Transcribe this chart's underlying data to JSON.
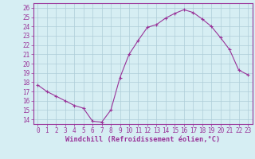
{
  "x": [
    0,
    1,
    2,
    3,
    4,
    5,
    6,
    7,
    8,
    9,
    10,
    11,
    12,
    13,
    14,
    15,
    16,
    17,
    18,
    19,
    20,
    21,
    22,
    23
  ],
  "y": [
    17.7,
    17.0,
    16.5,
    16.0,
    15.5,
    15.2,
    13.8,
    13.7,
    15.0,
    18.5,
    21.0,
    22.5,
    23.9,
    24.2,
    24.9,
    25.4,
    25.8,
    25.5,
    24.8,
    24.0,
    22.8,
    21.5,
    19.3,
    18.8
  ],
  "line_color": "#993399",
  "marker": "+",
  "bg_color": "#d6eef3",
  "grid_color": "#aecdd8",
  "xlabel": "Windchill (Refroidissement éolien,°C)",
  "ylabel_ticks": [
    14,
    15,
    16,
    17,
    18,
    19,
    20,
    21,
    22,
    23,
    24,
    25,
    26
  ],
  "xlim": [
    -0.5,
    23.5
  ],
  "ylim": [
    13.5,
    26.5
  ],
  "xticks": [
    0,
    1,
    2,
    3,
    4,
    5,
    6,
    7,
    8,
    9,
    10,
    11,
    12,
    13,
    14,
    15,
    16,
    17,
    18,
    19,
    20,
    21,
    22,
    23
  ],
  "xlabel_color": "#993399",
  "tick_color": "#993399",
  "axis_color": "#993399",
  "tick_fontsize": 5.5,
  "xlabel_fontsize": 6.2
}
